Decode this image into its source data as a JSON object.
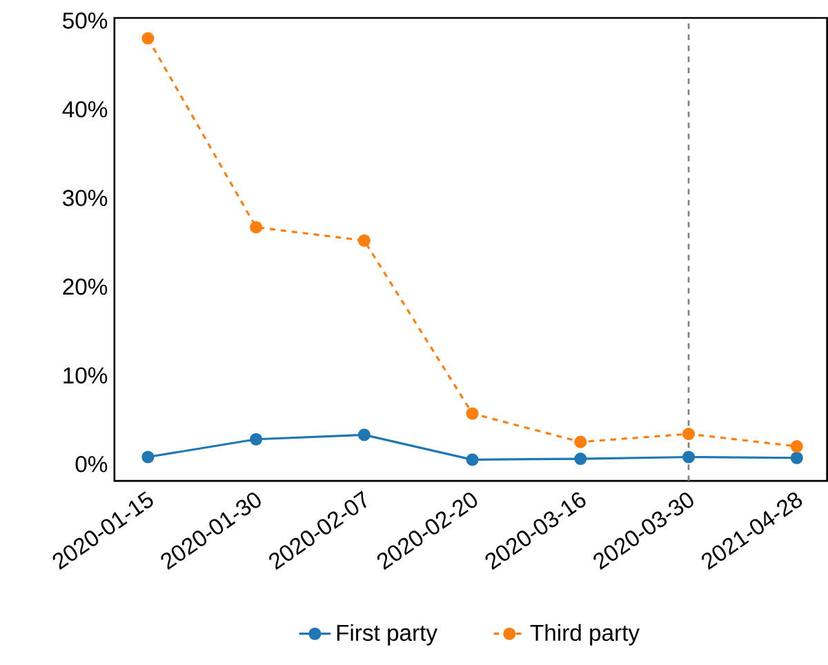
{
  "chart_data": {
    "type": "line",
    "categories": [
      "2020-01-15",
      "2020-01-30",
      "2020-02-07",
      "2020-02-20",
      "2020-03-16",
      "2020-03-30",
      "2021-04-28"
    ],
    "series": [
      {
        "name": "First party",
        "color": "#1f77b4",
        "line_style": "solid",
        "values": [
          0.8,
          2.8,
          3.3,
          0.5,
          0.6,
          0.8,
          0.7
        ]
      },
      {
        "name": "Third party",
        "color": "#ff7f0e",
        "line_style": "dashed",
        "values": [
          48.0,
          26.7,
          25.2,
          5.7,
          2.5,
          3.4,
          2.0
        ]
      }
    ],
    "ylim": [
      -1.9,
      50.3
    ],
    "yticks": [
      {
        "value": 0,
        "label": "0%"
      },
      {
        "value": 10,
        "label": "10%"
      },
      {
        "value": 20,
        "label": "20%"
      },
      {
        "value": 30,
        "label": "30%"
      },
      {
        "value": 40,
        "label": "40%"
      },
      {
        "value": 50,
        "label": "50%"
      }
    ],
    "ref_lines": [
      {
        "axis": "x",
        "value": "2020-03-30",
        "color": "#7f7f7f",
        "line_style": "dashed"
      }
    ],
    "marker": "circle",
    "grid": false,
    "legend": "bottom"
  }
}
